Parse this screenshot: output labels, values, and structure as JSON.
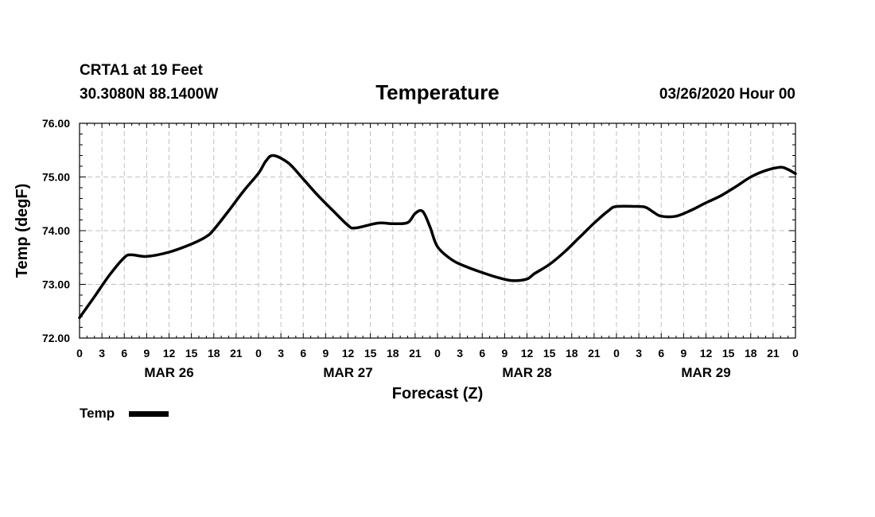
{
  "header": {
    "station": "CRTA1 at 19 Feet",
    "location": "30.3080N 88.1400W",
    "title": "Temperature",
    "run": "03/26/2020 Hour 00"
  },
  "chart_data": {
    "type": "line",
    "title": "Temperature",
    "xlabel": "Forecast (Z)",
    "ylabel": "Temp (degF)",
    "ylim": [
      72.0,
      76.0
    ],
    "xlim_hours": [
      0,
      96
    ],
    "grid": true,
    "y_ticks": [
      "72.00",
      "73.00",
      "74.00",
      "75.00",
      "76.00"
    ],
    "x_tick_labels": [
      "0",
      "3",
      "6",
      "9",
      "12",
      "15",
      "18",
      "21",
      "0",
      "3",
      "6",
      "9",
      "12",
      "15",
      "18",
      "21",
      "0",
      "3",
      "6",
      "9",
      "12",
      "15",
      "18",
      "21",
      "0",
      "3",
      "6",
      "9",
      "12",
      "15",
      "18",
      "21",
      "0"
    ],
    "day_labels": [
      {
        "label": "MAR 26",
        "hour": 12
      },
      {
        "label": "MAR 27",
        "hour": 36
      },
      {
        "label": "MAR 28",
        "hour": 60
      },
      {
        "label": "MAR 29",
        "hour": 84
      }
    ],
    "legend": {
      "label": "Temp",
      "position": "bottom-left"
    },
    "series": [
      {
        "name": "Temp",
        "color": "#000000",
        "x": [
          0,
          2,
          4,
          6,
          7,
          9,
          12,
          15,
          17,
          18,
          20,
          22,
          24,
          25,
          26,
          28,
          30,
          32,
          34,
          36,
          37,
          40,
          42,
          44,
          45,
          46,
          47,
          48,
          50,
          52,
          54,
          56,
          58,
          60,
          61,
          63,
          65,
          67,
          69,
          71,
          72,
          75,
          76,
          77,
          78,
          80,
          82,
          84,
          86,
          88,
          90,
          92,
          94,
          95,
          96
        ],
        "values": [
          72.38,
          72.77,
          73.17,
          73.5,
          73.55,
          73.52,
          73.6,
          73.75,
          73.89,
          74.02,
          74.37,
          74.74,
          75.07,
          75.3,
          75.4,
          75.26,
          74.96,
          74.65,
          74.37,
          74.1,
          74.05,
          74.14,
          74.13,
          74.15,
          74.32,
          74.36,
          74.07,
          73.7,
          73.45,
          73.32,
          73.22,
          73.13,
          73.07,
          73.1,
          73.2,
          73.37,
          73.6,
          73.87,
          74.14,
          74.38,
          74.45,
          74.45,
          74.43,
          74.34,
          74.27,
          74.27,
          74.38,
          74.52,
          74.65,
          74.82,
          75.0,
          75.12,
          75.18,
          75.14,
          75.06
        ]
      }
    ]
  }
}
